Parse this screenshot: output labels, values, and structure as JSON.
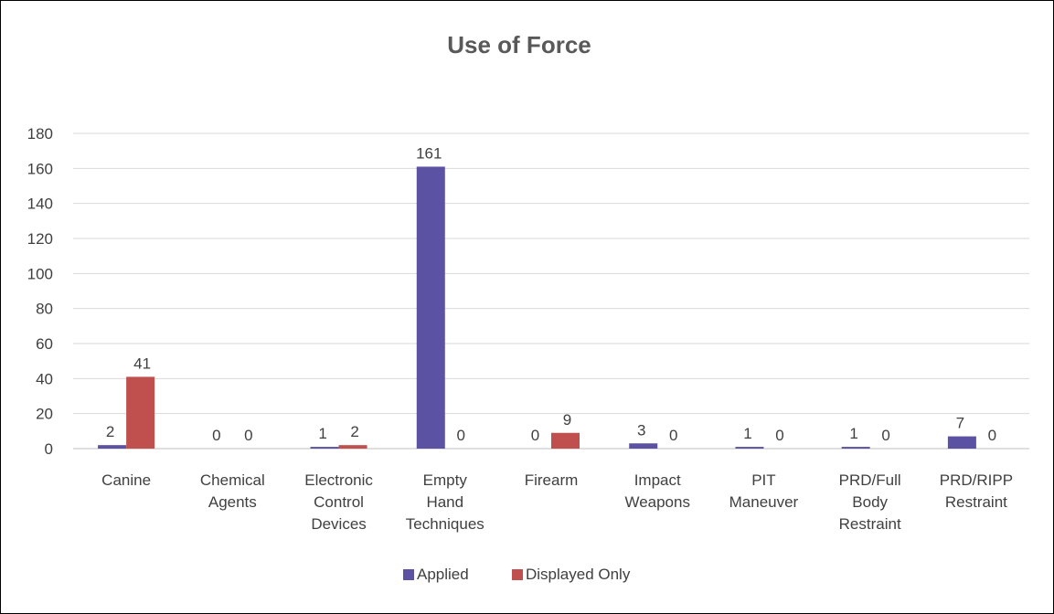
{
  "chart_data": {
    "type": "bar",
    "title": "Use of Force",
    "xlabel": "",
    "ylabel": "",
    "ylim": [
      0,
      180
    ],
    "yticks": [
      0,
      20,
      40,
      60,
      80,
      100,
      120,
      140,
      160,
      180
    ],
    "grid": true,
    "legend_position": "bottom",
    "categories": [
      [
        "Canine"
      ],
      [
        "Chemical",
        "Agents"
      ],
      [
        "Electronic",
        "Control",
        "Devices"
      ],
      [
        "Empty",
        "Hand",
        "Techniques"
      ],
      [
        "Firearm"
      ],
      [
        "Impact",
        "Weapons"
      ],
      [
        "PIT",
        "Maneuver"
      ],
      [
        "PRD/Full",
        "Body",
        "Restraint"
      ],
      [
        "PRD/RIPP",
        "Restraint"
      ]
    ],
    "series": [
      {
        "name": "Applied",
        "color": "#5B52A3",
        "values": [
          2,
          0,
          1,
          161,
          0,
          3,
          1,
          1,
          7
        ]
      },
      {
        "name": "Displayed Only",
        "color": "#C0504D",
        "values": [
          41,
          0,
          2,
          0,
          9,
          0,
          0,
          0,
          0
        ]
      }
    ]
  }
}
